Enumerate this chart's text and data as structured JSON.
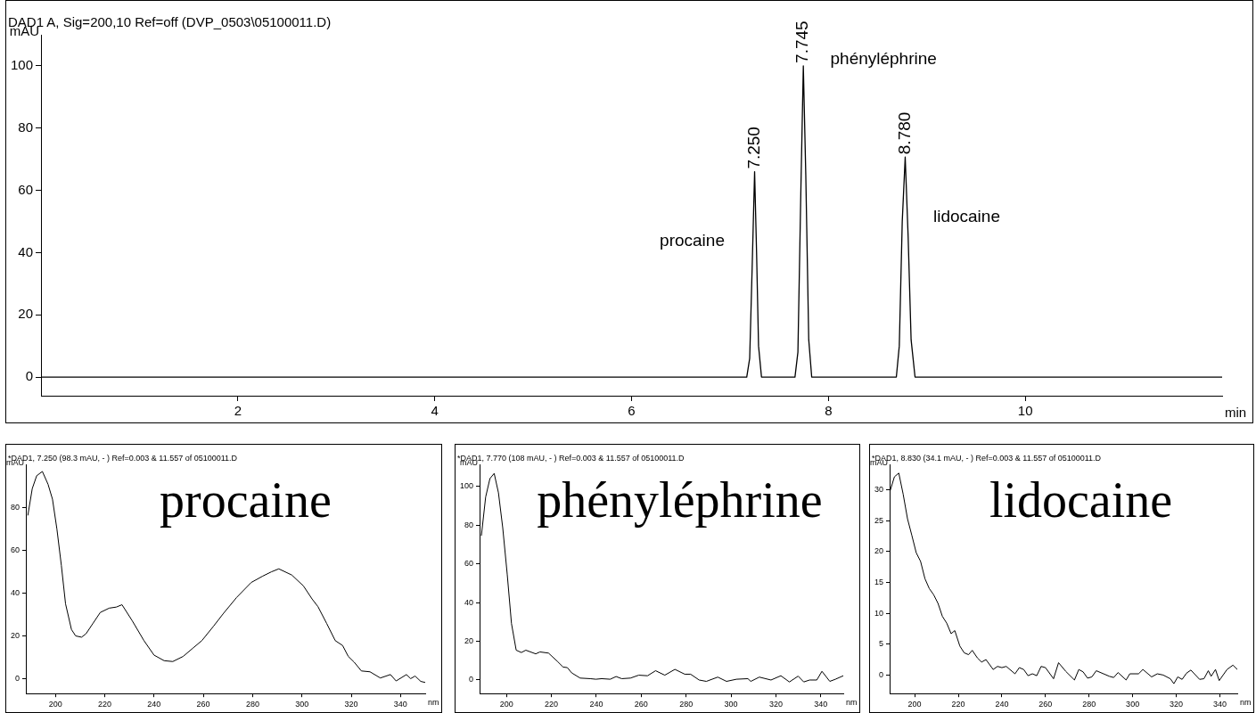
{
  "chart_data": [
    {
      "type": "line",
      "title": "DAD1 A, Sig=200,10 Ref=off (DVP_0503\\05100011.D)",
      "xlabel": "min",
      "ylabel": "mAU",
      "color": "#000000",
      "x": [
        0,
        7.17,
        7.2,
        7.225,
        7.25,
        7.27,
        7.29,
        7.32,
        7.66,
        7.69,
        7.72,
        7.745,
        7.77,
        7.8,
        7.83,
        8.69,
        8.72,
        8.75,
        8.78,
        8.81,
        8.84,
        8.88,
        12
      ],
      "values": [
        0,
        0,
        6,
        35,
        66,
        40,
        10,
        0,
        0,
        8,
        60,
        100,
        65,
        12,
        0,
        0,
        10,
        50,
        70.7,
        45,
        12,
        0,
        0
      ],
      "xlim": [
        0,
        12
      ],
      "xticks": [
        2,
        4,
        6,
        8,
        10
      ],
      "ylim": [
        -6,
        110
      ],
      "yticks": [
        0,
        20,
        40,
        60,
        80,
        100
      ],
      "annotations": [
        {
          "text": "7.250",
          "x": 7.25,
          "y": 66
        },
        {
          "text": "7.745",
          "x": 7.745,
          "y": 100
        },
        {
          "text": "8.780",
          "x": 8.78,
          "y": 70.7
        },
        "procaine",
        "phényléphrine",
        "lidocaine"
      ]
    },
    {
      "type": "line",
      "title": "*DAD1, 7.250 (98.3 mAU, - ) Ref=0.003 & 11.557 of 05100011.D",
      "xlabel": "nm",
      "ylabel": "mAU",
      "color": "#000000",
      "x": [
        188.8,
        190.6,
        192.4,
        194.7,
        197,
        198.8,
        200.6,
        202.4,
        204.1,
        206.5,
        208.2,
        210.6,
        212.4,
        215.3,
        218.2,
        221.8,
        224.7,
        227,
        231.2,
        235.9,
        240,
        244.1,
        247.6,
        251.8,
        255.9,
        259.4,
        264.1,
        268.2,
        273.5,
        279.4,
        284.1,
        287.6,
        290.6,
        295.9,
        300.6,
        304.1,
        306.5,
        310,
        313.5,
        316.5,
        318.8,
        321.2,
        324.1,
        327.6,
        331.8,
        335.9,
        338.2,
        342.4,
        344.1,
        345.9,
        348.2,
        350
      ],
      "values": [
        76.4,
        89,
        95,
        97,
        91,
        84,
        70,
        53,
        35,
        23,
        20,
        19.4,
        21,
        26,
        31,
        33,
        33.5,
        34.6,
        27,
        17.8,
        11,
        8.4,
        8,
        10.4,
        14.4,
        17.8,
        24.5,
        30.6,
        38,
        45,
        48,
        50,
        51.4,
        48.5,
        43.4,
        37.3,
        33.7,
        25.9,
        17.8,
        15.5,
        10.4,
        7.7,
        3.6,
        3.2,
        0.3,
        1.9,
        -1.1,
        1.9,
        0,
        1.2,
        -1.3,
        -1.8
      ],
      "xlim": [
        188,
        350
      ],
      "xticks": [
        200,
        220,
        240,
        260,
        280,
        300,
        320,
        340
      ],
      "ylim": [
        -7,
        100
      ],
      "yticks": [
        0,
        20,
        40,
        60,
        80
      ],
      "annotations": [
        "procaine"
      ]
    },
    {
      "type": "line",
      "title": "*DAD1, 7.770 (108 mAU, - ) Ref=0.003 & 11.557 of 05100011.D",
      "xlabel": "nm",
      "ylabel": "mAU",
      "color": "#000000",
      "x": [
        188.8,
        190.7,
        192.6,
        194.5,
        196.4,
        198.3,
        200.3,
        202.2,
        204.3,
        206.6,
        208.6,
        213,
        214.9,
        218.7,
        222.6,
        225.2,
        227.1,
        229,
        232.8,
        237.3,
        239.8,
        242.4,
        246.2,
        248.8,
        251.3,
        255.2,
        258.9,
        262.8,
        266.4,
        270.5,
        275,
        279.4,
        282,
        285.8,
        289,
        294.1,
        298,
        302.4,
        307.5,
        308.8,
        312.6,
        317.8,
        322.2,
        326,
        329.9,
        332.4,
        335,
        338.2,
        340.5,
        344,
        346.5,
        350
      ],
      "values": [
        74.5,
        94.5,
        104,
        106.7,
        96.7,
        78.7,
        54.7,
        29.2,
        15.4,
        14.2,
        15.4,
        13.5,
        14.5,
        13.9,
        9.7,
        6.7,
        6.4,
        3.7,
        1,
        0.7,
        0.4,
        0.7,
        0.4,
        1.8,
        0.7,
        1,
        2.5,
        2.2,
        4.8,
        2.5,
        5.5,
        3,
        3,
        0,
        -0.7,
        1.5,
        -0.7,
        0.4,
        0.7,
        -0.7,
        1.5,
        0,
        2.2,
        -1,
        2,
        -1,
        0,
        0,
        4.5,
        -0.7,
        0.4,
        2.2
      ],
      "xlim": [
        188,
        350
      ],
      "xticks": [
        200,
        220,
        240,
        260,
        280,
        300,
        320,
        340
      ],
      "ylim": [
        -7,
        111
      ],
      "yticks": [
        0,
        20,
        40,
        60,
        80,
        100
      ],
      "annotations": [
        "phényléphrine"
      ]
    },
    {
      "type": "line",
      "title": "*DAD1, 8.830 (34.1 mAU, - ) Ref=0.003 & 11.557 of 05100011.D",
      "xlabel": "nm",
      "ylabel": "mAU",
      "color": "#000000",
      "x": [
        188.7,
        190.7,
        192.7,
        194.7,
        196.7,
        198.7,
        200.7,
        202.7,
        204.7,
        206.7,
        208.7,
        210.7,
        212.7,
        214.7,
        216.7,
        218.4,
        220.7,
        222.7,
        224.7,
        226.4,
        228.7,
        230.7,
        232.7,
        236,
        238,
        240,
        242,
        246,
        248,
        250,
        252,
        254,
        256,
        258,
        260,
        263.7,
        266,
        269.3,
        273.3,
        275.3,
        277.3,
        279.3,
        281.3,
        283.3,
        289.3,
        291.3,
        293.3,
        297,
        298.7,
        302.7,
        304.7,
        308.7,
        311.3,
        314,
        317.3,
        318.9,
        320.7,
        322.7,
        324.7,
        326.7,
        330.7,
        332.7,
        334.7,
        336,
        338,
        339.7,
        343.3,
        346,
        348
      ],
      "values": [
        29.8,
        32.1,
        32.7,
        29.3,
        25.3,
        22.6,
        19.8,
        18.4,
        15.6,
        14,
        13,
        11.6,
        9.5,
        8.4,
        6.7,
        7.2,
        4.7,
        3.6,
        3.3,
        4,
        2.8,
        2.1,
        2.5,
        0.9,
        1.4,
        1.2,
        1.4,
        0.2,
        1.2,
        0.9,
        -0.1,
        0.2,
        -0.1,
        1.4,
        1.2,
        -0.6,
        2,
        0.6,
        -0.8,
        0.9,
        0.5,
        -0.5,
        -0.3,
        0.7,
        -0.2,
        -0.4,
        0.4,
        -0.8,
        0.2,
        0.2,
        0.9,
        -0.3,
        0.2,
        0,
        -0.6,
        -1.4,
        -0.3,
        -0.7,
        0.3,
        0.8,
        -0.7,
        -0.6,
        0.7,
        -0.2,
        0.9,
        -0.9,
        0.9,
        1.6,
        0.9
      ],
      "xlim": [
        188.5,
        348
      ],
      "xticks": [
        200,
        220,
        240,
        260,
        280,
        300,
        320,
        340
      ],
      "ylim": [
        -3,
        34
      ],
      "yticks": [
        0,
        5,
        10,
        15,
        20,
        25,
        30
      ],
      "annotations": [
        "lidocaine"
      ]
    }
  ]
}
